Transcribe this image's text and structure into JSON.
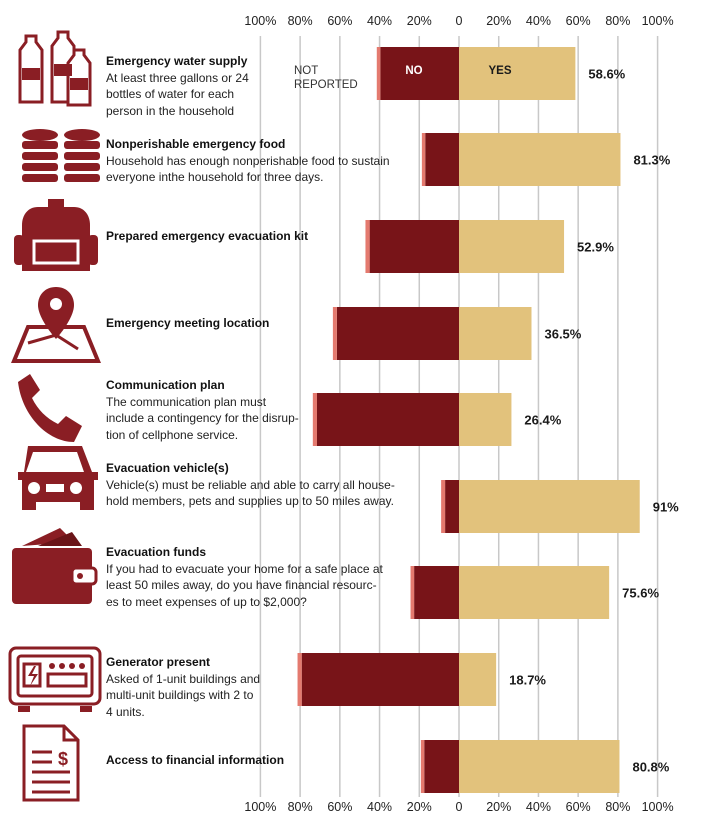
{
  "colors": {
    "no": "#781418",
    "yes": "#e2c27c",
    "not_reported": "#e47a6f",
    "icon": "#8a1e24",
    "grid": "#c8c8c8"
  },
  "axis": {
    "top_ticks": [
      "100%",
      "80%",
      "60%",
      "40%",
      "20%",
      "0",
      "20%",
      "40%",
      "60%",
      "80%",
      "100%"
    ],
    "bottom_ticks": [
      "100%",
      "80%",
      "60%",
      "40%",
      "20%",
      "0",
      "20%",
      "40%",
      "60%",
      "80%",
      "100%"
    ]
  },
  "legend": {
    "not_reported": [
      "NOT",
      "REPORTED"
    ],
    "no": "NO",
    "yes": "YES"
  },
  "rows": [
    {
      "icon": "water-bottles-icon",
      "title": "Emergency water supply",
      "desc": [
        "At least three gallons or 24",
        "bottles of water for each",
        "person in the household"
      ],
      "value_label": "58.6%"
    },
    {
      "icon": "canned-food-icon",
      "title": "Nonperishable emergency food",
      "desc": [
        "Household has enough nonperishable food to sustain",
        "everyone inthe household for three days."
      ],
      "value_label": "81.3%"
    },
    {
      "icon": "backpack-icon",
      "title": "Prepared emergency evacuation kit",
      "desc": [],
      "value_label": "52.9%"
    },
    {
      "icon": "map-pin-icon",
      "title": "Emergency meeting location",
      "desc": [],
      "value_label": "36.5%"
    },
    {
      "icon": "phone-icon",
      "title": "Communication plan",
      "desc": [
        "The communication plan must",
        "include a contingency for the disrup-",
        "tion of cellphone service."
      ],
      "value_label": "26.4%"
    },
    {
      "icon": "car-icon",
      "title": "Evacuation vehicle(s)",
      "desc": [
        "Vehicle(s) must be reliable and able to carry all house-",
        "hold members, pets and supplies up to 50 miles away."
      ],
      "value_label": "91%"
    },
    {
      "icon": "wallet-icon",
      "title": "Evacuation funds",
      "desc": [
        "If you had to evacuate your home for a safe place at",
        "least 50 miles away, do you have financial resourc-",
        "es to meet expenses of up to $2,000?"
      ],
      "value_label": "75.6%"
    },
    {
      "icon": "generator-icon",
      "title": "Generator present",
      "desc": [
        "Asked of 1-unit buildings and",
        "multi-unit buildings with 2 to",
        "4 units."
      ],
      "value_label": "18.7%"
    },
    {
      "icon": "financial-document-icon",
      "title": "Access to financial information",
      "desc": [],
      "value_label": "80.8%"
    }
  ],
  "chart_data": {
    "type": "bar",
    "orientation": "horizontal-diverging",
    "categories": [
      "Emergency water supply",
      "Nonperishable emergency food",
      "Prepared emergency evacuation kit",
      "Emergency meeting location",
      "Communication plan",
      "Evacuation vehicle(s)",
      "Evacuation funds",
      "Generator present",
      "Access to financial information"
    ],
    "series": [
      {
        "name": "YES",
        "values": [
          58.6,
          81.3,
          52.9,
          36.5,
          26.4,
          91,
          75.6,
          18.7,
          80.8
        ]
      },
      {
        "name": "NO",
        "values": [
          39.6,
          17.0,
          45.0,
          61.5,
          71.5,
          7.0,
          22.6,
          79.2,
          17.5
        ]
      },
      {
        "name": "NOT REPORTED",
        "values": [
          1.8,
          1.7,
          2.1,
          2.0,
          2.1,
          2.0,
          1.8,
          2.1,
          1.7
        ]
      }
    ],
    "xlim": [
      -100,
      100
    ],
    "grid": true,
    "legend": "inline-first-bar"
  }
}
